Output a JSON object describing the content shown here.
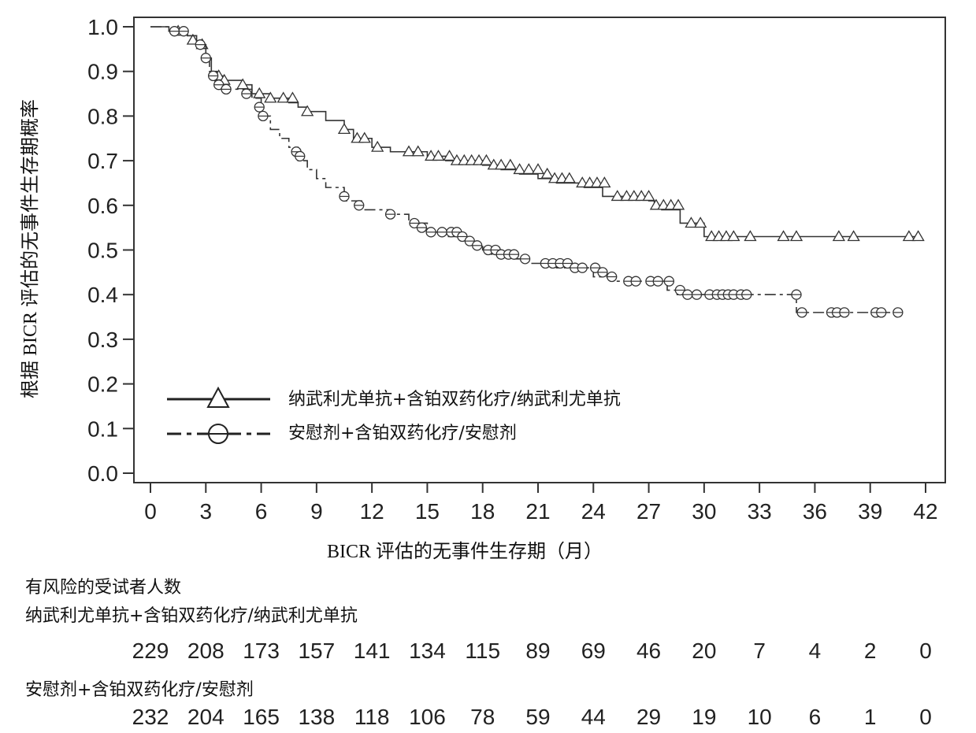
{
  "chart_data": {
    "type": "line",
    "title": "",
    "xlabel": "BICR 评估的无事件生存期（月）",
    "ylabel": "根据 BICR 评估的无事件生存期概率",
    "xlim": [
      0,
      42
    ],
    "ylim": [
      0,
      1.0
    ],
    "x_ticks": [
      "0",
      "3",
      "6",
      "9",
      "12",
      "15",
      "18",
      "21",
      "24",
      "27",
      "30",
      "33",
      "36",
      "39",
      "42"
    ],
    "y_ticks": [
      "0.0",
      "0.1",
      "0.2",
      "0.3",
      "0.4",
      "0.5",
      "0.6",
      "0.7",
      "0.8",
      "0.9",
      "1.0"
    ],
    "grid": false,
    "legend_position": "lower-left",
    "series": [
      {
        "name": "纳武利尤单抗+含铂双药化疗/纳武利尤单抗",
        "line_style": "solid",
        "marker": "triangle",
        "steps": [
          [
            0,
            1.0
          ],
          [
            1,
            0.99
          ],
          [
            2,
            0.98
          ],
          [
            2.5,
            0.96
          ],
          [
            3,
            0.93
          ],
          [
            3.3,
            0.9
          ],
          [
            3.6,
            0.89
          ],
          [
            4,
            0.88
          ],
          [
            5,
            0.87
          ],
          [
            5.5,
            0.85
          ],
          [
            6.5,
            0.84
          ],
          [
            7.5,
            0.83
          ],
          [
            8,
            0.82
          ],
          [
            8.5,
            0.81
          ],
          [
            9.5,
            0.79
          ],
          [
            10.5,
            0.77
          ],
          [
            11,
            0.75
          ],
          [
            12,
            0.73
          ],
          [
            13,
            0.72
          ],
          [
            15,
            0.71
          ],
          [
            16,
            0.7
          ],
          [
            18,
            0.69
          ],
          [
            19,
            0.68
          ],
          [
            20,
            0.67
          ],
          [
            21,
            0.66
          ],
          [
            22,
            0.65
          ],
          [
            23.5,
            0.64
          ],
          [
            24.5,
            0.62
          ],
          [
            27,
            0.61
          ],
          [
            27.3,
            0.6
          ],
          [
            27.7,
            0.59
          ],
          [
            28.7,
            0.56
          ],
          [
            30,
            0.53
          ],
          [
            41.5,
            0.53
          ]
        ],
        "censored": [
          [
            1.5,
            0.99
          ],
          [
            2.3,
            0.97
          ],
          [
            2.8,
            0.96
          ],
          [
            3.7,
            0.89
          ],
          [
            4,
            0.88
          ],
          [
            5,
            0.87
          ],
          [
            5.9,
            0.85
          ],
          [
            6.5,
            0.84
          ],
          [
            7.2,
            0.84
          ],
          [
            7.7,
            0.84
          ],
          [
            8.5,
            0.81
          ],
          [
            10.5,
            0.77
          ],
          [
            11.2,
            0.75
          ],
          [
            11.6,
            0.75
          ],
          [
            12.3,
            0.73
          ],
          [
            14,
            0.72
          ],
          [
            14.5,
            0.72
          ],
          [
            15.2,
            0.71
          ],
          [
            15.6,
            0.71
          ],
          [
            16.2,
            0.71
          ],
          [
            16.6,
            0.7
          ],
          [
            17,
            0.7
          ],
          [
            17.4,
            0.7
          ],
          [
            17.8,
            0.7
          ],
          [
            18.2,
            0.7
          ],
          [
            18.6,
            0.69
          ],
          [
            19,
            0.69
          ],
          [
            19.5,
            0.69
          ],
          [
            20,
            0.68
          ],
          [
            20.5,
            0.68
          ],
          [
            21,
            0.68
          ],
          [
            21.5,
            0.67
          ],
          [
            21.9,
            0.66
          ],
          [
            22.3,
            0.66
          ],
          [
            22.7,
            0.66
          ],
          [
            23.4,
            0.65
          ],
          [
            23.8,
            0.65
          ],
          [
            24.2,
            0.65
          ],
          [
            24.6,
            0.65
          ],
          [
            25.3,
            0.62
          ],
          [
            25.8,
            0.62
          ],
          [
            26.2,
            0.62
          ],
          [
            26.6,
            0.62
          ],
          [
            27,
            0.62
          ],
          [
            27.4,
            0.6
          ],
          [
            27.8,
            0.6
          ],
          [
            28.2,
            0.6
          ],
          [
            28.6,
            0.6
          ],
          [
            29.3,
            0.56
          ],
          [
            29.8,
            0.56
          ],
          [
            30.4,
            0.53
          ],
          [
            30.8,
            0.53
          ],
          [
            31.2,
            0.53
          ],
          [
            31.6,
            0.53
          ],
          [
            32.5,
            0.53
          ],
          [
            34.3,
            0.53
          ],
          [
            35,
            0.53
          ],
          [
            37.3,
            0.53
          ],
          [
            38.1,
            0.53
          ],
          [
            41.1,
            0.53
          ],
          [
            41.6,
            0.53
          ]
        ]
      },
      {
        "name": "安慰剂+含铂双药化疗/安慰剂",
        "line_style": "dashed",
        "marker": "circle",
        "steps": [
          [
            0,
            1.0
          ],
          [
            1,
            0.99
          ],
          [
            2,
            0.98
          ],
          [
            2.5,
            0.96
          ],
          [
            3,
            0.93
          ],
          [
            3.2,
            0.9
          ],
          [
            3.5,
            0.87
          ],
          [
            3.8,
            0.86
          ],
          [
            5.5,
            0.84
          ],
          [
            6,
            0.8
          ],
          [
            6.5,
            0.77
          ],
          [
            7,
            0.75
          ],
          [
            7.5,
            0.73
          ],
          [
            8,
            0.7
          ],
          [
            8.5,
            0.68
          ],
          [
            9,
            0.66
          ],
          [
            9.5,
            0.64
          ],
          [
            10.5,
            0.61
          ],
          [
            11.5,
            0.59
          ],
          [
            13,
            0.58
          ],
          [
            14,
            0.56
          ],
          [
            15,
            0.54
          ],
          [
            16,
            0.53
          ],
          [
            17,
            0.52
          ],
          [
            17.5,
            0.51
          ],
          [
            18,
            0.5
          ],
          [
            18.5,
            0.49
          ],
          [
            19.5,
            0.48
          ],
          [
            20.5,
            0.47
          ],
          [
            22,
            0.46
          ],
          [
            24,
            0.44
          ],
          [
            25,
            0.43
          ],
          [
            28,
            0.41
          ],
          [
            28.5,
            0.4
          ],
          [
            35,
            0.36
          ],
          [
            40.5,
            0.36
          ]
        ],
        "censored": [
          [
            1.3,
            0.99
          ],
          [
            1.8,
            0.99
          ],
          [
            2.7,
            0.96
          ],
          [
            3,
            0.93
          ],
          [
            3.4,
            0.89
          ],
          [
            3.7,
            0.87
          ],
          [
            4.1,
            0.86
          ],
          [
            5.2,
            0.85
          ],
          [
            5.9,
            0.82
          ],
          [
            6.1,
            0.8
          ],
          [
            7.9,
            0.72
          ],
          [
            8.1,
            0.71
          ],
          [
            10.5,
            0.62
          ],
          [
            11.3,
            0.6
          ],
          [
            13,
            0.58
          ],
          [
            14.3,
            0.56
          ],
          [
            14.7,
            0.55
          ],
          [
            15.2,
            0.54
          ],
          [
            15.8,
            0.54
          ],
          [
            16.3,
            0.54
          ],
          [
            16.6,
            0.54
          ],
          [
            16.9,
            0.53
          ],
          [
            17.3,
            0.52
          ],
          [
            17.7,
            0.51
          ],
          [
            18.3,
            0.5
          ],
          [
            18.7,
            0.5
          ],
          [
            19,
            0.49
          ],
          [
            19.4,
            0.49
          ],
          [
            19.7,
            0.49
          ],
          [
            20.3,
            0.48
          ],
          [
            21.4,
            0.47
          ],
          [
            21.8,
            0.47
          ],
          [
            22.2,
            0.47
          ],
          [
            22.6,
            0.47
          ],
          [
            23,
            0.46
          ],
          [
            23.4,
            0.46
          ],
          [
            24.1,
            0.46
          ],
          [
            24.5,
            0.45
          ],
          [
            25,
            0.44
          ],
          [
            25.9,
            0.43
          ],
          [
            26.3,
            0.43
          ],
          [
            27.1,
            0.43
          ],
          [
            27.5,
            0.43
          ],
          [
            28.1,
            0.43
          ],
          [
            28.7,
            0.41
          ],
          [
            29.1,
            0.4
          ],
          [
            29.6,
            0.4
          ],
          [
            30.3,
            0.4
          ],
          [
            30.7,
            0.4
          ],
          [
            31,
            0.4
          ],
          [
            31.3,
            0.4
          ],
          [
            31.6,
            0.4
          ],
          [
            32,
            0.4
          ],
          [
            32.3,
            0.4
          ],
          [
            35,
            0.4
          ],
          [
            35.3,
            0.36
          ],
          [
            36.9,
            0.36
          ],
          [
            37.2,
            0.36
          ],
          [
            37.6,
            0.36
          ],
          [
            39.3,
            0.36
          ],
          [
            39.6,
            0.36
          ],
          [
            40.5,
            0.36
          ]
        ]
      }
    ],
    "at_risk": {
      "title": "有风险的受试者人数",
      "groups": [
        {
          "label": "纳武利尤单抗+含铂双药化疗/纳武利尤单抗",
          "values": [
            "229",
            "208",
            "173",
            "157",
            "141",
            "134",
            "115",
            "89",
            "69",
            "46",
            "20",
            "7",
            "4",
            "2",
            "0"
          ]
        },
        {
          "label": "安慰剂+含铂双药化疗/安慰剂",
          "values": [
            "232",
            "204",
            "165",
            "138",
            "118",
            "106",
            "78",
            "59",
            "44",
            "29",
            "19",
            "10",
            "6",
            "1",
            "0"
          ]
        }
      ]
    }
  }
}
